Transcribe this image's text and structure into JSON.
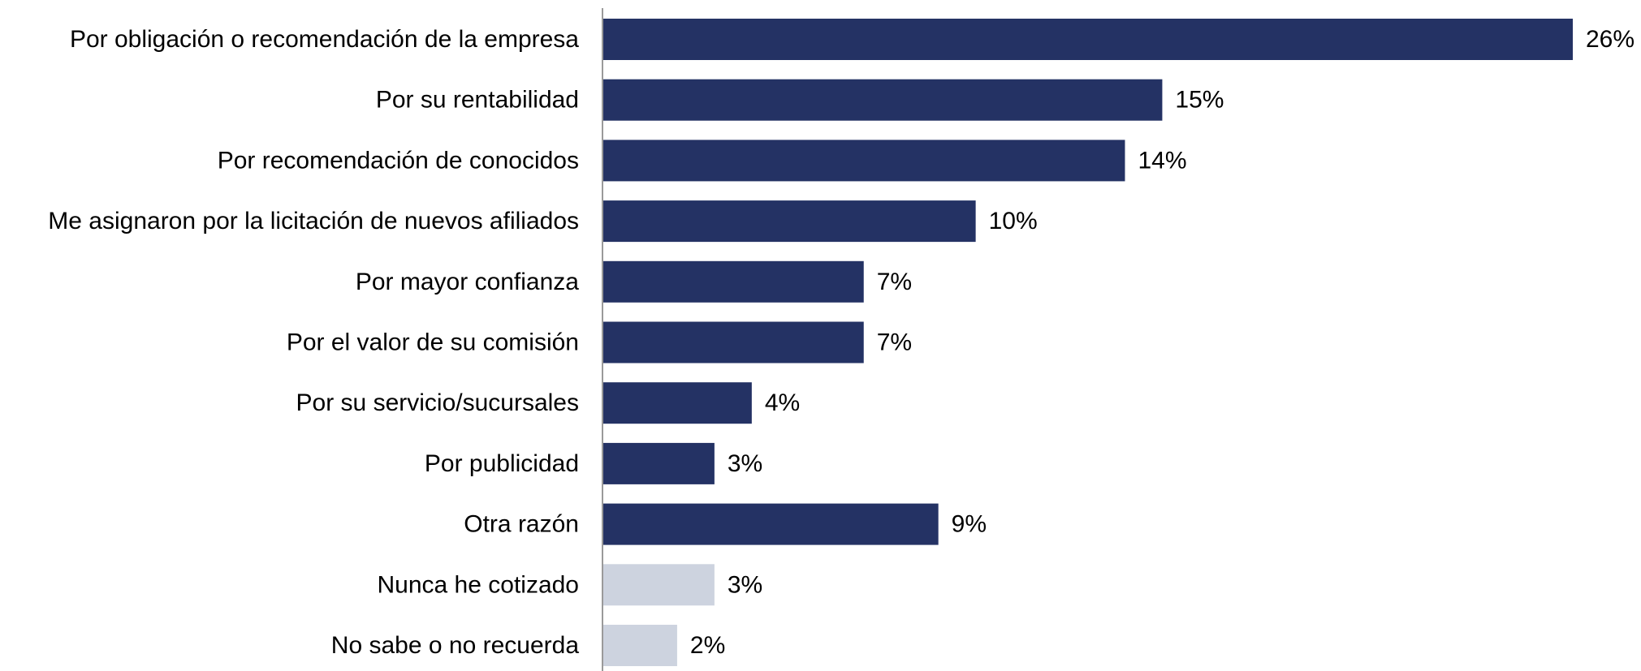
{
  "chart_data": {
    "type": "bar",
    "orientation": "horizontal",
    "categories": [
      "Por obligación o recomendación de la empresa",
      "Por su rentabilidad",
      "Por recomendación de conocidos",
      "Me asignaron por la licitación de nuevos afiliados",
      "Por mayor confianza",
      "Por el valor de su comisión",
      "Por su servicio/sucursales",
      "Por publicidad",
      "Otra razón",
      "Nunca he cotizado",
      "No sabe o no recuerda"
    ],
    "values": [
      26,
      15,
      14,
      10,
      7,
      7,
      4,
      3,
      9,
      3,
      2
    ],
    "value_labels": [
      "26%",
      "15%",
      "14%",
      "10%",
      "7%",
      "7%",
      "4%",
      "3%",
      "9%",
      "3%",
      "2%"
    ],
    "bar_colors": [
      "#243264",
      "#243264",
      "#243264",
      "#243264",
      "#243264",
      "#243264",
      "#243264",
      "#243264",
      "#243264",
      "#cdd3df",
      "#cdd3df"
    ],
    "axis_color": "#9a9a9a",
    "grid": false,
    "legend": "none",
    "xlim": [
      0,
      26
    ]
  }
}
